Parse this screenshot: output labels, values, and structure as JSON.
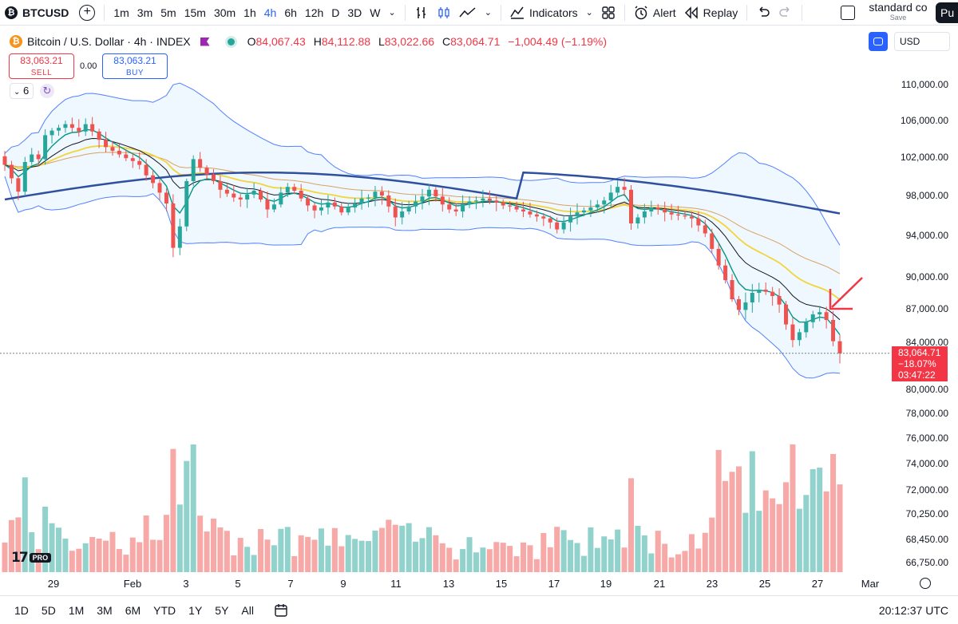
{
  "toolbar": {
    "symbol": "BTCUSD",
    "intervals": [
      "1m",
      "3m",
      "5m",
      "15m",
      "30m",
      "1h",
      "4h",
      "6h",
      "12h",
      "D",
      "3D",
      "W"
    ],
    "active_interval": "4h",
    "indicators_label": "Indicators",
    "alert_label": "Alert",
    "replay_label": "Replay",
    "layout_name": "standard co",
    "layout_save": "Save",
    "publish_label": "Pu"
  },
  "legend": {
    "title": "Bitcoin / U.S. Dollar · 4h · INDEX",
    "open": "84,067.43",
    "high": "84,112.88",
    "low": "83,022.66",
    "close": "83,064.71",
    "change": "−1,004.49 (−1.19%)"
  },
  "trade": {
    "sell_price": "83,063.21",
    "sell_label": "SELL",
    "spread": "0.00",
    "buy_price": "83,063.21",
    "buy_label": "BUY"
  },
  "indicator_count": "6",
  "currency": "USD",
  "price_marker": {
    "price": "83,064.71",
    "change_pct": "−18.07%",
    "countdown": "03:47:22"
  },
  "time_axis": [
    "29",
    "Feb",
    "3",
    "5",
    "7",
    "9",
    "11",
    "13",
    "15",
    "17",
    "19",
    "21",
    "23",
    "25",
    "27",
    "Mar"
  ],
  "bottom_bar": {
    "ranges": [
      "1D",
      "5D",
      "1M",
      "3M",
      "6M",
      "YTD",
      "1Y",
      "5Y",
      "All"
    ],
    "time": "20:12:37 UTC"
  },
  "chart_data": {
    "type": "candlestick",
    "symbol": "BTCUSD",
    "interval": "4h",
    "y_axis_ticks": [
      "110,000.00",
      "106,000.00",
      "102,000.00",
      "98,000.00",
      "94,000.00",
      "90,000.00",
      "87,000.00",
      "84,000.00",
      "80,000.00",
      "78,000.00",
      "76,000.00",
      "74,000.00",
      "72,000.00",
      "70,250.00",
      "68,450.00",
      "66,750.00"
    ],
    "ylim": [
      66000,
      111500
    ],
    "x_labels": [
      "29",
      "Feb",
      "3",
      "5",
      "7",
      "9",
      "11",
      "13",
      "15",
      "17",
      "19",
      "21",
      "23",
      "25",
      "27",
      "Mar"
    ],
    "candle_closes": [
      101200,
      99800,
      98400,
      101500,
      102300,
      101800,
      104400,
      104900,
      105200,
      105600,
      105200,
      104800,
      105600,
      104800,
      103900,
      103100,
      102700,
      102300,
      101900,
      101600,
      101200,
      100100,
      99300,
      98300,
      97200,
      92800,
      94900,
      99500,
      101800,
      100900,
      100200,
      99500,
      98600,
      98200,
      97800,
      97600,
      98100,
      98500,
      97600,
      96600,
      97100,
      98300,
      98900,
      98500,
      97700,
      97000,
      96500,
      96800,
      97300,
      96900,
      96300,
      96800,
      97200,
      97700,
      97800,
      98400,
      98000,
      96900,
      95800,
      96400,
      96900,
      97400,
      97900,
      98600,
      97900,
      97100,
      96600,
      96400,
      97100,
      97400,
      97500,
      97700,
      97500,
      97300,
      97000,
      96900,
      96600,
      96400,
      96100,
      95900,
      95700,
      95300,
      94600,
      95300,
      95900,
      96300,
      96500,
      96800,
      97100,
      97500,
      98300,
      98900,
      98600,
      95200,
      95800,
      96400,
      96800,
      96600,
      96300,
      96100,
      96000,
      95900,
      95700,
      95000,
      94200,
      92700,
      91100,
      89700,
      87900,
      86900,
      87600,
      88500,
      88800,
      88600,
      88200,
      87400,
      85600,
      84200,
      84900,
      85800,
      86500,
      86700,
      86000,
      84100,
      83065
    ],
    "overlays": [
      "Bollinger upper",
      "Bollinger lower",
      "EMA (teal)",
      "EMA (black)",
      "EMA (yellow)",
      "EMA (orange)",
      "MA (blue)"
    ],
    "volume": "bars (green = up, red = down)",
    "last_price": 83064.71,
    "annotation": "red arrow pointing at recent swing high"
  }
}
